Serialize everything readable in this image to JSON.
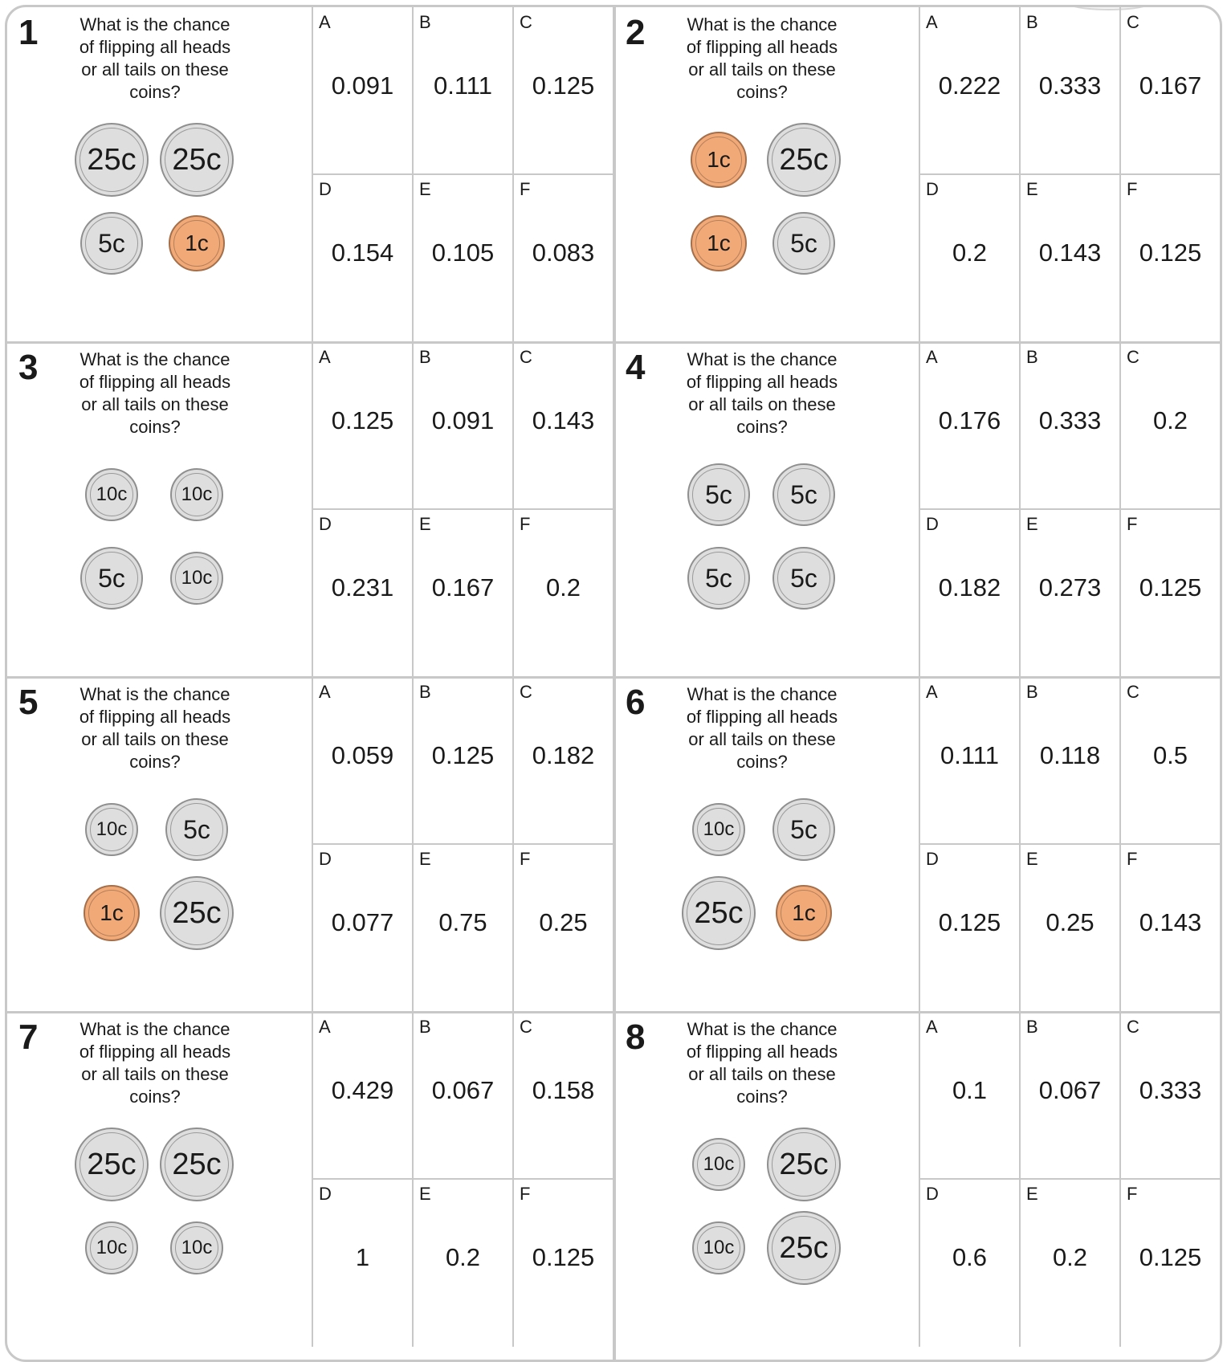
{
  "worksheet": {
    "question": "What is the chance of flipping all heads or all tails on these coins?",
    "option_letters": [
      "A",
      "B",
      "C",
      "D",
      "E",
      "F"
    ],
    "problems": [
      {
        "number": "1",
        "coins": [
          {
            "label": "25c",
            "kind": "silver",
            "size": "c25"
          },
          {
            "label": "25c",
            "kind": "silver",
            "size": "c25"
          },
          {
            "label": "5c",
            "kind": "silver",
            "size": "c5"
          },
          {
            "label": "1c",
            "kind": "copper",
            "size": "c1"
          }
        ],
        "answers": [
          "0.091",
          "0.111",
          "0.125",
          "0.154",
          "0.105",
          "0.083"
        ]
      },
      {
        "number": "2",
        "coins": [
          {
            "label": "1c",
            "kind": "copper",
            "size": "c1"
          },
          {
            "label": "25c",
            "kind": "silver",
            "size": "c25"
          },
          {
            "label": "1c",
            "kind": "copper",
            "size": "c1"
          },
          {
            "label": "5c",
            "kind": "silver",
            "size": "c5"
          }
        ],
        "answers": [
          "0.222",
          "0.333",
          "0.167",
          "0.2",
          "0.143",
          "0.125"
        ]
      },
      {
        "number": "3",
        "coins": [
          {
            "label": "10c",
            "kind": "silver",
            "size": "c10"
          },
          {
            "label": "10c",
            "kind": "silver",
            "size": "c10"
          },
          {
            "label": "5c",
            "kind": "silver",
            "size": "c5"
          },
          {
            "label": "10c",
            "kind": "silver",
            "size": "c10"
          }
        ],
        "answers": [
          "0.125",
          "0.091",
          "0.143",
          "0.231",
          "0.167",
          "0.2"
        ]
      },
      {
        "number": "4",
        "coins": [
          {
            "label": "5c",
            "kind": "silver",
            "size": "c5"
          },
          {
            "label": "5c",
            "kind": "silver",
            "size": "c5"
          },
          {
            "label": "5c",
            "kind": "silver",
            "size": "c5"
          },
          {
            "label": "5c",
            "kind": "silver",
            "size": "c5"
          }
        ],
        "answers": [
          "0.176",
          "0.333",
          "0.2",
          "0.182",
          "0.273",
          "0.125"
        ]
      },
      {
        "number": "5",
        "coins": [
          {
            "label": "10c",
            "kind": "silver",
            "size": "c10"
          },
          {
            "label": "5c",
            "kind": "silver",
            "size": "c5"
          },
          {
            "label": "1c",
            "kind": "copper",
            "size": "c1"
          },
          {
            "label": "25c",
            "kind": "silver",
            "size": "c25"
          }
        ],
        "answers": [
          "0.059",
          "0.125",
          "0.182",
          "0.077",
          "0.75",
          "0.25"
        ]
      },
      {
        "number": "6",
        "coins": [
          {
            "label": "10c",
            "kind": "silver",
            "size": "c10"
          },
          {
            "label": "5c",
            "kind": "silver",
            "size": "c5"
          },
          {
            "label": "25c",
            "kind": "silver",
            "size": "c25"
          },
          {
            "label": "1c",
            "kind": "copper",
            "size": "c1"
          }
        ],
        "answers": [
          "0.111",
          "0.118",
          "0.5",
          "0.125",
          "0.25",
          "0.143"
        ]
      },
      {
        "number": "7",
        "coins": [
          {
            "label": "25c",
            "kind": "silver",
            "size": "c25"
          },
          {
            "label": "25c",
            "kind": "silver",
            "size": "c25"
          },
          {
            "label": "10c",
            "kind": "silver",
            "size": "c10"
          },
          {
            "label": "10c",
            "kind": "silver",
            "size": "c10"
          }
        ],
        "answers": [
          "0.429",
          "0.067",
          "0.158",
          "1",
          "0.2",
          "0.125"
        ]
      },
      {
        "number": "8",
        "coins": [
          {
            "label": "10c",
            "kind": "silver",
            "size": "c10"
          },
          {
            "label": "25c",
            "kind": "silver",
            "size": "c25"
          },
          {
            "label": "10c",
            "kind": "silver",
            "size": "c10"
          },
          {
            "label": "25c",
            "kind": "silver",
            "size": "c25"
          }
        ],
        "answers": [
          "0.1",
          "0.067",
          "0.333",
          "0.6",
          "0.2",
          "0.125"
        ]
      }
    ]
  },
  "colors": {
    "border": "#c8c8c8",
    "coin_silver": "#dedede",
    "coin_copper": "#f2a978",
    "text": "#1a1a1a"
  }
}
